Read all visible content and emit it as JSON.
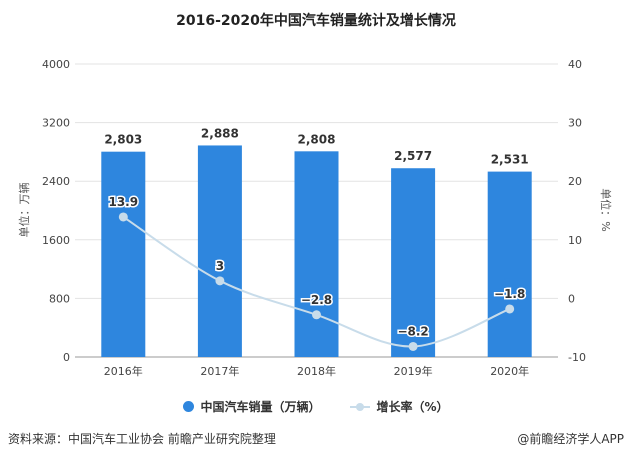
{
  "chart_data": {
    "type": "bar+line",
    "title": "2016-2020年中国汽车销量统计及增长情况",
    "categories": [
      "2016年",
      "2017年",
      "2018年",
      "2019年",
      "2020年"
    ],
    "series": [
      {
        "name": "中国汽车销量（万辆）",
        "type": "bar",
        "axis": "left",
        "values": [
          2803,
          2888,
          2808,
          2577,
          2531
        ],
        "labels": [
          "2,803",
          "2,888",
          "2,808",
          "2,577",
          "2,531"
        ],
        "color": "#2e86de"
      },
      {
        "name": "增长率（%）",
        "type": "line",
        "axis": "right",
        "values": [
          13.9,
          3,
          -2.8,
          -8.2,
          -1.8
        ],
        "labels": [
          "13.9",
          "3",
          "−2.8",
          "−8.2",
          "−1.8"
        ],
        "color": "#c8dcea"
      }
    ],
    "ylabel": "单位：万辆",
    "y2label": "单位：%",
    "ylim": [
      0,
      4000
    ],
    "yticks": [
      "0",
      "800",
      "1600",
      "2400",
      "3200",
      "4000"
    ],
    "y2lim": [
      -10,
      40
    ],
    "y2ticks": [
      "-10",
      "0",
      "10",
      "20",
      "30",
      "40"
    ],
    "grid": true,
    "legend": "bottom"
  },
  "footer": {
    "source": "资料来源：中国汽车工业协会 前瞻产业研究院整理",
    "credit": "@前瞻经济学人APP"
  }
}
